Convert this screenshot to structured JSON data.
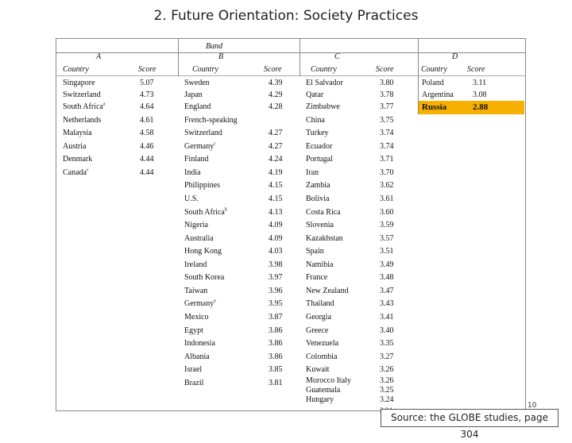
{
  "title": "2. Future Orientation: Society Practices",
  "header": {
    "band": "Band",
    "band_letters": [
      "A",
      "B",
      "C",
      "D"
    ],
    "country_label": "Country",
    "score_label": "Score"
  },
  "band_a": [
    {
      "country": "Singapore",
      "score": "5.07"
    },
    {
      "country": "Switzerland",
      "score": "4.73"
    },
    {
      "country": "South Africa",
      "sup": "a",
      "score": "4.64"
    },
    {
      "country": "Netherlands",
      "score": "4.61"
    },
    {
      "country": "Malaysia",
      "score": "4.58"
    },
    {
      "country": "Austria",
      "score": "4.46"
    },
    {
      "country": "Denmark",
      "score": "4.44"
    },
    {
      "country": "Canada",
      "sup": "c",
      "score": "4.44"
    }
  ],
  "band_b": [
    {
      "country": "Sweden",
      "score": "4.39"
    },
    {
      "country": "Japan",
      "score": "4.29"
    },
    {
      "country": "England",
      "score": "4.28"
    },
    {
      "country": "French-speaking",
      "score": ""
    },
    {
      "country": "Switzerland",
      "score": "4.27"
    },
    {
      "country": "Germany",
      "sup": "r",
      "score": "4.27"
    },
    {
      "country": "Finland",
      "score": "4.24"
    },
    {
      "country": "India",
      "score": "4.19"
    },
    {
      "country": "Philippines",
      "score": "4.15"
    },
    {
      "country": "U.S.",
      "score": "4.15"
    },
    {
      "country": "South Africa",
      "sup": "b",
      "score": "4.13"
    },
    {
      "country": "Nigeria",
      "score": "4.09"
    },
    {
      "country": "Australia",
      "score": "4.09"
    },
    {
      "country": "Hong Kong",
      "score": "4.03"
    },
    {
      "country": "Ireland",
      "score": "3.98"
    },
    {
      "country": "South Korea",
      "score": "3.97"
    },
    {
      "country": "Taiwan",
      "score": "3.96"
    },
    {
      "country": "Germany",
      "sup": "e",
      "score": "3.95"
    },
    {
      "country": "Mexico",
      "score": "3.87"
    },
    {
      "country": "Egypt",
      "score": "3.86"
    },
    {
      "country": "Indonesia",
      "score": "3.86"
    },
    {
      "country": "Albania",
      "score": "3.86"
    },
    {
      "country": "Israel",
      "score": "3.85"
    },
    {
      "country": "Brazil",
      "score": "3.81"
    }
  ],
  "band_c": [
    {
      "country": "El Salvador",
      "score": "3.80"
    },
    {
      "country": "Qatar",
      "score": "3.78"
    },
    {
      "country": "Zimbabwe",
      "score": "3.77"
    },
    {
      "country": "China",
      "score": "3.75"
    },
    {
      "country": "Turkey",
      "score": "3.74"
    },
    {
      "country": "Ecuador",
      "score": "3.74"
    },
    {
      "country": "Portugal",
      "score": "3.71"
    },
    {
      "country": "Iran",
      "score": "3.70"
    },
    {
      "country": "Zambia",
      "score": "3.62"
    },
    {
      "country": "Bolivia",
      "score": "3.61"
    },
    {
      "country": "Costa Rica",
      "score": "3.60"
    },
    {
      "country": "Slovenia",
      "score": "3.59"
    },
    {
      "country": "Kazakhstan",
      "score": "3.57"
    },
    {
      "country": "Spain",
      "score": "3.51"
    },
    {
      "country": "Namibia",
      "score": "3.49"
    },
    {
      "country": "France",
      "score": "3.48"
    },
    {
      "country": "New Zealand",
      "score": "3.47"
    },
    {
      "country": "Thailand",
      "score": "3.43"
    },
    {
      "country": "Georgia",
      "score": "3.41"
    },
    {
      "country": "Greece",
      "score": "3.40"
    },
    {
      "country": "Venezuela",
      "score": "3.35"
    },
    {
      "country": "Colombia",
      "score": "3.27"
    },
    {
      "country": "Kuwait",
      "score": "3.26"
    },
    {
      "country": "Morocco Italy",
      "score": "3.26"
    },
    {
      "country": "Guatemala",
      "score": "3.25"
    },
    {
      "country": "Hungary",
      "score": "3.24"
    }
  ],
  "band_d": [
    {
      "country": "Poland",
      "score": "3.11"
    },
    {
      "country": "Argentina",
      "score": "3.08"
    },
    {
      "country": "Russia",
      "score": "2.88"
    }
  ],
  "highlight_color": "#f5b000",
  "page_number": "10",
  "source": "Source: the GLOBE studies, page 304"
}
